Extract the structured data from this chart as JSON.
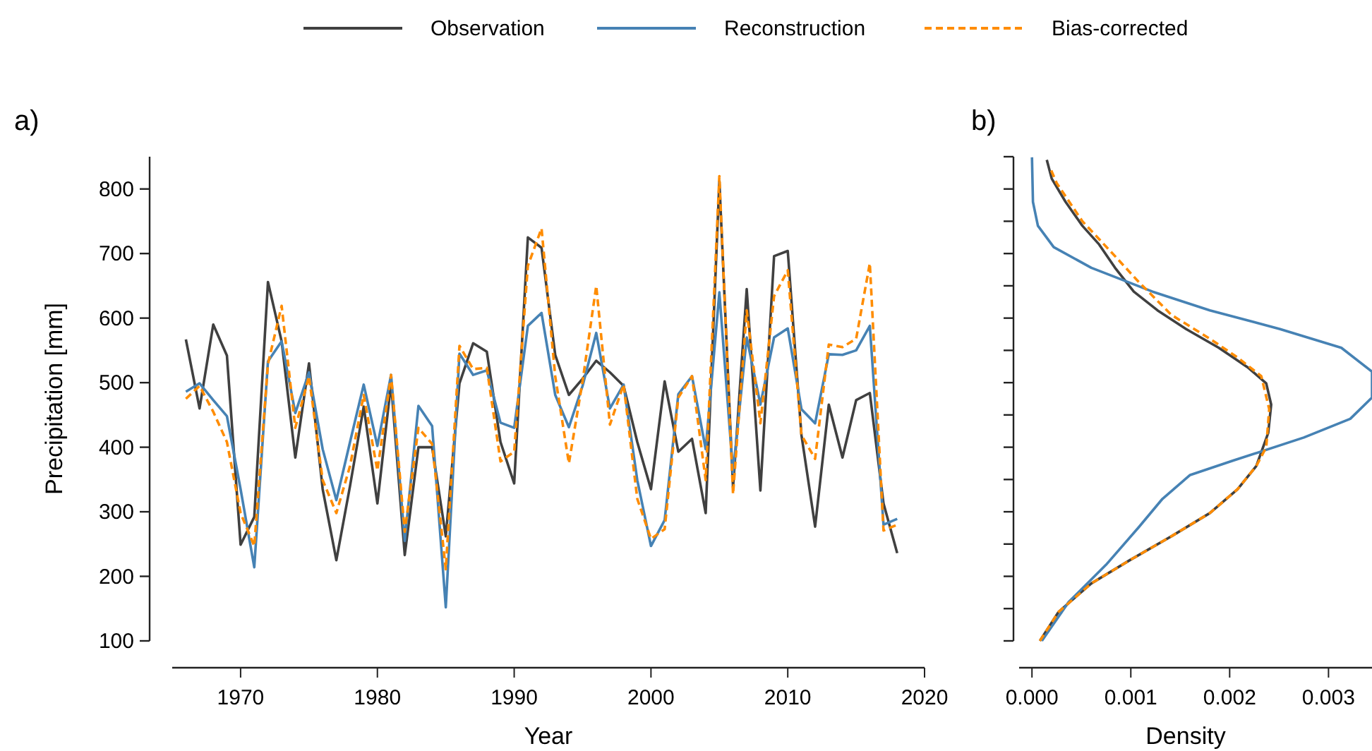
{
  "chart_data": [
    {
      "type": "line",
      "title": "a)",
      "xlabel": "Year",
      "ylabel": "Precipitation [mm]",
      "legend": "top",
      "x": [
        1966,
        1967,
        1968,
        1969,
        1970,
        1971,
        1972,
        1973,
        1974,
        1975,
        1976,
        1977,
        1978,
        1979,
        1980,
        1981,
        1982,
        1983,
        1984,
        1985,
        1986,
        1987,
        1988,
        1989,
        1990,
        1991,
        1992,
        1993,
        1994,
        1995,
        1996,
        1997,
        1998,
        1999,
        2000,
        2001,
        2002,
        2003,
        2004,
        2005,
        2006,
        2007,
        2008,
        2009,
        2010,
        2011,
        2012,
        2013,
        2014,
        2015,
        2016,
        2017,
        2018
      ],
      "xlim": [
        1965,
        2020
      ],
      "xticks": [
        1970,
        1980,
        1990,
        2000,
        2010,
        2020
      ],
      "ylim": [
        100,
        850
      ],
      "yticks": [
        100,
        200,
        300,
        400,
        500,
        600,
        700,
        800
      ],
      "series": [
        {
          "name": "Observation",
          "color": "#404040",
          "line_style": "solid",
          "values": [
            567,
            460,
            590,
            542,
            249,
            292,
            656,
            564,
            384,
            530,
            335,
            225,
            340,
            463,
            313,
            499,
            233,
            400,
            400,
            262,
            499,
            561,
            548,
            408,
            344,
            725,
            709,
            543,
            481,
            506,
            534,
            516,
            495,
            408,
            335,
            502,
            393,
            413,
            298,
            812,
            338,
            645,
            333,
            696,
            704,
            419,
            277,
            466,
            384,
            473,
            484,
            313,
            236
          ]
        },
        {
          "name": "Reconstruction",
          "color": "#4682b4",
          "line_style": "solid",
          "values": [
            486,
            499,
            473,
            448,
            335,
            214,
            533,
            564,
            453,
            516,
            397,
            318,
            408,
            497,
            402,
            512,
            255,
            464,
            433,
            152,
            545,
            512,
            519,
            438,
            430,
            588,
            608,
            481,
            431,
            495,
            577,
            460,
            497,
            349,
            247,
            287,
            482,
            510,
            397,
            640,
            360,
            570,
            466,
            570,
            584,
            459,
            437,
            544,
            543,
            550,
            588,
            280,
            289
          ]
        },
        {
          "name": "Bias-corrected",
          "color": "#ff8c00",
          "line_style": "dashed",
          "values": [
            475,
            495,
            455,
            408,
            298,
            247,
            529,
            619,
            430,
            510,
            349,
            298,
            371,
            481,
            364,
            512,
            269,
            430,
            405,
            211,
            557,
            521,
            523,
            378,
            393,
            681,
            739,
            510,
            375,
            502,
            650,
            435,
            497,
            320,
            258,
            273,
            477,
            510,
            349,
            820,
            327,
            612,
            437,
            634,
            674,
            419,
            382,
            559,
            555,
            568,
            685,
            271,
            280
          ]
        }
      ]
    },
    {
      "type": "line",
      "title": "b)",
      "xlabel": "Density",
      "tick_labels": "x",
      "xlim": [
        -0.00013,
        0.00344
      ],
      "xticks": [
        {
          "value": 0,
          "label": "0.000"
        },
        {
          "value": 0.001,
          "label": "0.001"
        },
        {
          "value": 0.002,
          "label": "0.002"
        },
        {
          "value": 0.003,
          "label": "0.003"
        }
      ],
      "ylim": [
        100,
        850
      ],
      "yticks": [
        100,
        150,
        200,
        250,
        300,
        350,
        400,
        450,
        500,
        550,
        600,
        650,
        700,
        750,
        800,
        850
      ],
      "series": [
        {
          "color": "#404040",
          "line_style": "solid",
          "x": [
            8e-05,
            0.00027,
            0.0006,
            0.00099,
            0.00141,
            0.0018,
            0.00208,
            0.00227,
            0.00239,
            0.00242,
            0.00237,
            0.00218,
            0.00189,
            0.00156,
            0.00127,
            0.00103,
            0.00084,
            0.00068,
            0.00051,
            0.00034,
            0.0002,
            0.00015
          ],
          "values": [
            100,
            145,
            189,
            225,
            262,
            298,
            335,
            371,
            422,
            466,
            499,
            524,
            554,
            583,
            612,
            641,
            678,
            714,
            743,
            780,
            816,
            845
          ]
        },
        {
          "color": "#4682b4",
          "line_style": "solid",
          "x": [
            0.0001,
            0.00037,
            0.00075,
            0.00108,
            0.00132,
            0.0016,
            0.00203,
            0.00275,
            0.00322,
            0.00344,
            0.00344,
            0.00313,
            0.00251,
            0.0018,
            0.00122,
            0.0006,
            0.00022,
            6e-05,
            1e-05,
            0
          ],
          "values": [
            100,
            160,
            218,
            276,
            320,
            357,
            379,
            415,
            444,
            477,
            517,
            554,
            583,
            612,
            641,
            678,
            710,
            743,
            780,
            849
          ]
        },
        {
          "color": "#ff8c00",
          "line_style": "dashed",
          "x": [
            8e-05,
            0.00027,
            0.0006,
            0.00099,
            0.00141,
            0.0018,
            0.00208,
            0.00227,
            0.00237,
            0.0024,
            0.00232,
            0.00208,
            0.0018,
            0.00141,
            0.00108,
            0.00084,
            0.00051,
            0.00025,
            0.00018
          ],
          "values": [
            100,
            145,
            189,
            225,
            262,
            298,
            335,
            371,
            400,
            459,
            510,
            539,
            568,
            605,
            656,
            696,
            750,
            809,
            834
          ]
        }
      ]
    }
  ]
}
